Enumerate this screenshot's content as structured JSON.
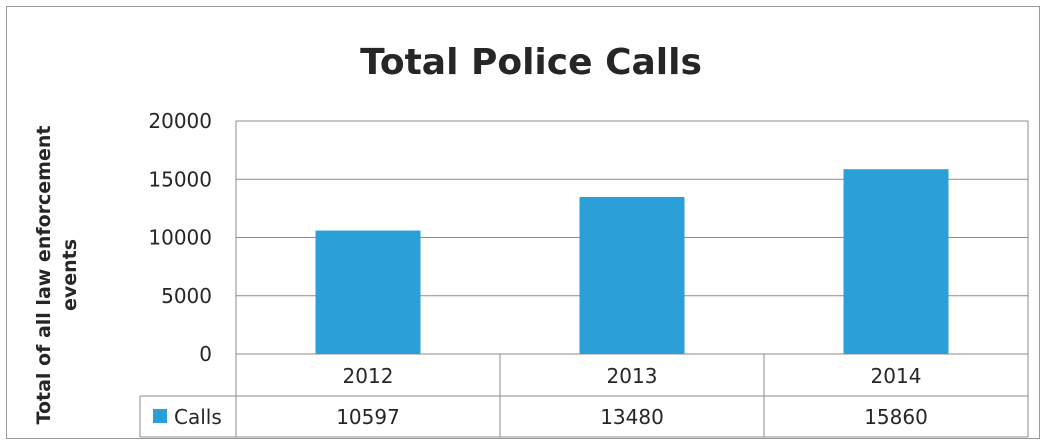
{
  "chart_data": {
    "type": "bar",
    "title": "Total Police Calls",
    "ylabel": "Total of all law enforcement events",
    "ylabel_lines": [
      "Total of all law enforcement",
      "events"
    ],
    "xlabel": "",
    "categories": [
      "2012",
      "2013",
      "2014"
    ],
    "series": [
      {
        "name": "Calls",
        "values": [
          10597,
          13480,
          15860
        ],
        "color": "#2a9fd8"
      }
    ],
    "ylim": [
      0,
      20000
    ],
    "yticks": [
      "0",
      "5000",
      "10000",
      "15000",
      "20000"
    ],
    "data_table": {
      "row_label": "Calls",
      "values": [
        "10597",
        "13480",
        "15860"
      ]
    },
    "grid": true,
    "legend": "data-table"
  }
}
